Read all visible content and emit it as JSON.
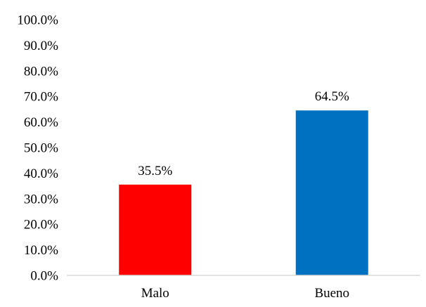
{
  "chart_data": {
    "type": "bar",
    "categories": [
      "Malo",
      "Bueno"
    ],
    "values": [
      35.5,
      64.5
    ],
    "value_labels": [
      "35.5%",
      "64.5%"
    ],
    "colors": [
      "#ff0000",
      "#0070c0"
    ],
    "ylim": [
      0,
      100
    ],
    "y_ticks": [
      "0.0%",
      "10.0%",
      "20.0%",
      "30.0%",
      "40.0%",
      "50.0%",
      "60.0%",
      "70.0%",
      "80.0%",
      "90.0%",
      "100.0%"
    ],
    "grid": false,
    "legend": "none",
    "axis_color": "#d9d9d9"
  }
}
